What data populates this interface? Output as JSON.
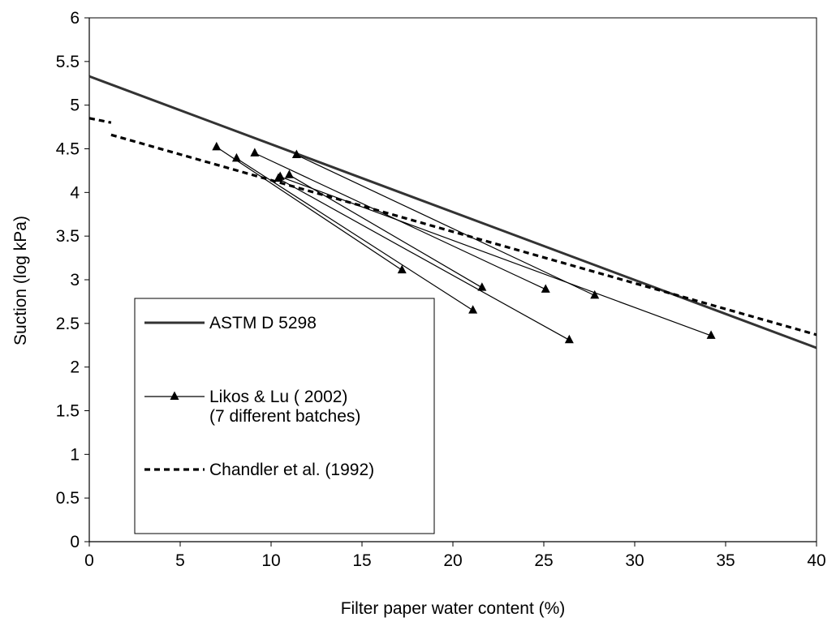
{
  "chart_data": {
    "type": "line",
    "title": "",
    "xlabel": "Filter paper  water content (%)",
    "ylabel": "Suction (log kPa)",
    "xlim": [
      0,
      40
    ],
    "ylim": [
      0,
      6
    ],
    "x_ticks": [
      0,
      5,
      10,
      15,
      20,
      25,
      30,
      35,
      40
    ],
    "y_ticks": [
      0,
      0.5,
      1,
      1.5,
      2,
      2.5,
      3,
      3.5,
      4,
      4.5,
      5,
      5.5,
      6
    ],
    "y_tick_labels": [
      "0",
      "0.5",
      "1",
      "1.5",
      "2",
      "2.5",
      "3",
      "3.5",
      "4",
      "4.5",
      "5",
      "5.5",
      "6"
    ],
    "grid": false,
    "legend_position": "bottom-left",
    "legend": [
      {
        "label_lines": [
          "ASTM D 5298"
        ],
        "style": "solid-thick"
      },
      {
        "label_lines": [
          "Likos & Lu ( 2002)",
          "(7 different batches)"
        ],
        "style": "solid-thin-triangle"
      },
      {
        "label_lines": [
          "Chandler et al. (1992)"
        ],
        "style": "dashed"
      }
    ],
    "series": [
      {
        "name": "ASTM D 5298",
        "style": "solid-thick",
        "x": [
          0,
          40
        ],
        "y": [
          5.33,
          2.22
        ]
      },
      {
        "name": "Chandler et al. (1992)",
        "style": "dashed",
        "segments": [
          {
            "x": [
              0,
              1.2
            ],
            "y": [
              4.85,
              4.8
            ]
          },
          {
            "x": [
              1.2,
              40
            ],
            "y": [
              4.66,
              2.37
            ]
          }
        ]
      },
      {
        "name": "Likos & Lu ( 2002)",
        "style": "solid-thin-triangle",
        "lines": [
          {
            "x": [
              7.0,
              17.2
            ],
            "y": [
              4.52,
              3.11
            ]
          },
          {
            "x": [
              8.1,
              21.1
            ],
            "y": [
              4.39,
              2.65
            ]
          },
          {
            "x": [
              10.4,
              26.4
            ],
            "y": [
              4.16,
              2.31
            ]
          },
          {
            "x": [
              11.0,
              21.6
            ],
            "y": [
              4.2,
              2.91
            ]
          },
          {
            "x": [
              9.1,
              25.1
            ],
            "y": [
              4.45,
              2.89
            ]
          },
          {
            "x": [
              11.4,
              27.8
            ],
            "y": [
              4.43,
              2.82
            ]
          },
          {
            "x": [
              10.5,
              34.2
            ],
            "y": [
              4.18,
              2.36
            ]
          }
        ]
      }
    ]
  }
}
